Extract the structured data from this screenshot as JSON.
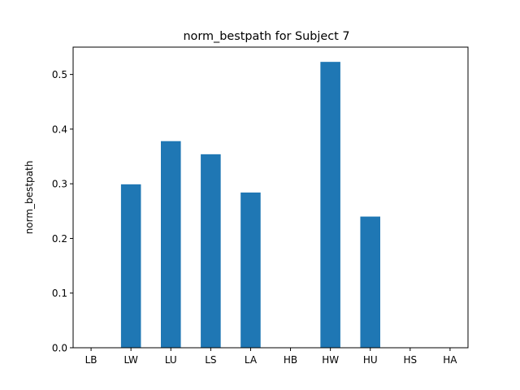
{
  "chart_data": {
    "type": "bar",
    "title": "norm_bestpath for Subject 7",
    "xlabel": "",
    "ylabel": "norm_bestpath",
    "categories": [
      "LB",
      "LW",
      "LU",
      "LS",
      "LA",
      "HB",
      "HW",
      "HU",
      "HS",
      "HA"
    ],
    "values": [
      0.0,
      0.299,
      0.378,
      0.354,
      0.284,
      0.0,
      0.523,
      0.24,
      0.0,
      0.0
    ],
    "ylim": [
      0,
      0.55
    ],
    "yticks": [
      "0.0",
      "0.1",
      "0.2",
      "0.3",
      "0.4",
      "0.5"
    ],
    "bar_color": "#1f77b4",
    "grid": false,
    "legend": "none"
  }
}
